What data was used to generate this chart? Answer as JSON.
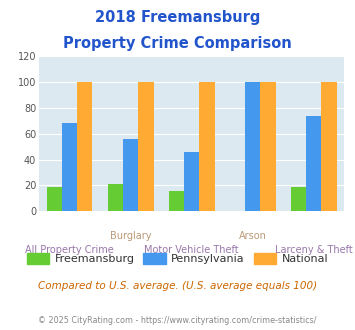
{
  "title_line1": "2018 Freemansburg",
  "title_line2": "Property Crime Comparison",
  "categories": [
    "All Property Crime",
    "Burglary",
    "Motor Vehicle Theft",
    "Arson",
    "Larceny & Theft"
  ],
  "x_labels_row1": [
    "",
    "Burglary",
    "",
    "Arson",
    ""
  ],
  "x_labels_row2": [
    "All Property Crime",
    "",
    "Motor Vehicle Theft",
    "",
    "Larceny & Theft"
  ],
  "freemansburg": [
    19,
    21,
    16,
    0,
    19
  ],
  "pennsylvania": [
    68,
    56,
    46,
    100,
    74
  ],
  "national": [
    100,
    100,
    100,
    100,
    100
  ],
  "color_freemansburg": "#66cc33",
  "color_pennsylvania": "#4499ee",
  "color_national": "#ffaa33",
  "ylim": [
    0,
    120
  ],
  "yticks": [
    0,
    20,
    40,
    60,
    80,
    100,
    120
  ],
  "bg_color": "#dce9f0",
  "title_color": "#2255cc",
  "xlabel_color_row1": "#bb9977",
  "xlabel_color_row2": "#9977aa",
  "legend_label_color": "#333333",
  "note_text": "Compared to U.S. average. (U.S. average equals 100)",
  "note_color": "#cc6600",
  "footer_text": "© 2025 CityRating.com - https://www.cityrating.com/crime-statistics/",
  "footer_color": "#888888",
  "bar_width": 0.25
}
